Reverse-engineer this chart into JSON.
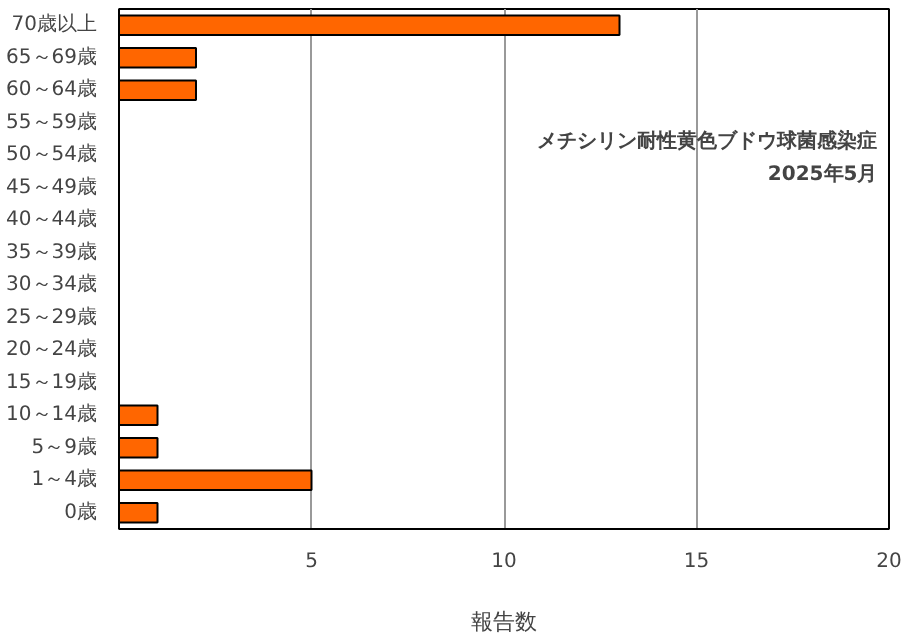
{
  "chart_data": {
    "type": "bar",
    "orientation": "horizontal",
    "xlabel": "報告数",
    "categories": [
      "70歳以上",
      "65～69歳",
      "60～64歳",
      "55～59歳",
      "50～54歳",
      "45～49歳",
      "40～44歳",
      "35～39歳",
      "30～34歳",
      "25～29歳",
      "20～24歳",
      "15～19歳",
      "10～14歳",
      "5～9歳",
      "1～4歳",
      "0歳"
    ],
    "values": [
      13,
      2,
      2,
      0,
      0,
      0,
      0,
      0,
      0,
      0,
      0,
      0,
      1,
      1,
      5,
      1
    ],
    "color": "#ff6600",
    "xlim": [
      0,
      20
    ],
    "xticks": [
      {
        "value": 0,
        "label": null
      },
      5,
      10,
      15,
      20
    ],
    "grid": "x",
    "annotations": [
      "メチシリン耐性黄色ブドウ球菌感染症",
      "2025年5月"
    ]
  }
}
